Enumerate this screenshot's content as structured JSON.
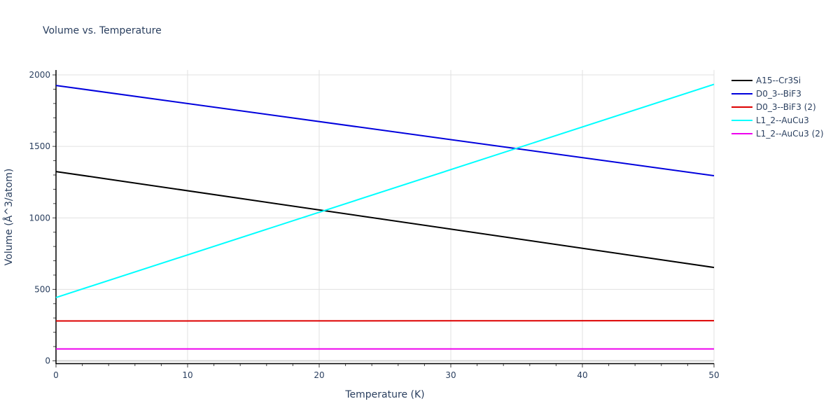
{
  "chart_data": {
    "type": "line",
    "title": "Volume vs. Temperature",
    "xlabel": "Temperature (K)",
    "ylabel": "Volume (Å^3/atom)",
    "xlim": [
      0,
      50
    ],
    "ylim": [
      0,
      2000
    ],
    "x_ticks": [
      0,
      10,
      20,
      30,
      40,
      50
    ],
    "y_ticks": [
      0,
      500,
      1000,
      1500,
      2000
    ],
    "grid": true,
    "legend_position": "right-top",
    "series": [
      {
        "name": "A15--Cr3Si",
        "color": "#000000",
        "x": [
          0,
          50
        ],
        "values": [
          1324,
          653
        ]
      },
      {
        "name": "D0_3--BiF3",
        "color": "#0000dd",
        "x": [
          0,
          50
        ],
        "values": [
          1926,
          1295
        ]
      },
      {
        "name": "D0_3--BiF3 (2)",
        "color": "#dd0000",
        "x": [
          0,
          50
        ],
        "values": [
          279,
          281
        ]
      },
      {
        "name": "L1_2--AuCu3",
        "color": "#00ffff",
        "x": [
          0,
          50
        ],
        "values": [
          443,
          1934
        ]
      },
      {
        "name": "L1_2--AuCu3 (2)",
        "color": "#ee00ee",
        "x": [
          0,
          50
        ],
        "values": [
          83,
          83
        ]
      }
    ]
  },
  "labels": {
    "title": "Volume vs. Temperature",
    "xlabel": "Temperature (K)",
    "ylabel": "Volume (Å^3/atom)",
    "x_ticks": [
      "0",
      "10",
      "20",
      "30",
      "40",
      "50"
    ],
    "y_ticks": [
      "0",
      "500",
      "1000",
      "1500",
      "2000"
    ],
    "legend": [
      "A15--Cr3Si",
      "D0_3--BiF3",
      "D0_3--BiF3 (2)",
      "L1_2--AuCu3",
      "L1_2--AuCu3 (2)"
    ]
  }
}
